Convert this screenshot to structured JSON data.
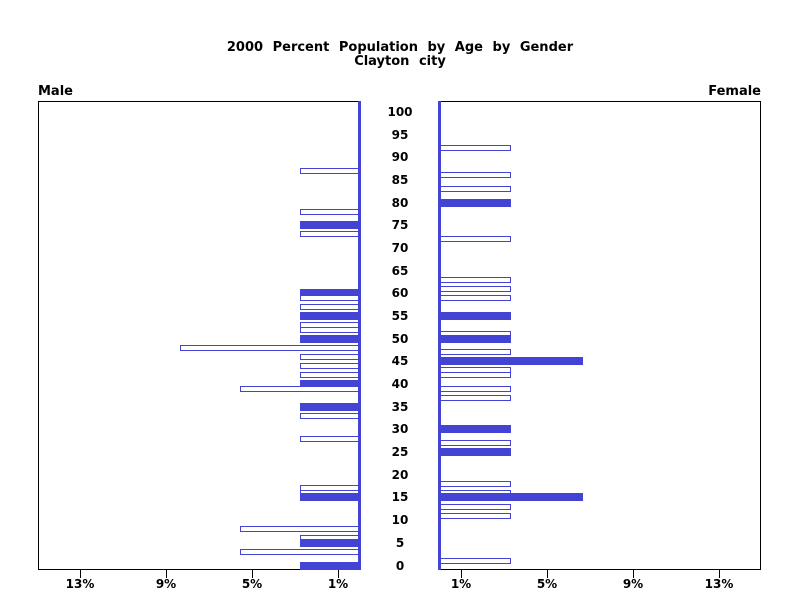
{
  "title": "2000 Percent Population by Age by Gender",
  "subtitle": "Clayton city",
  "colors": {
    "bar_blue": "#4444d4",
    "axis_blue": "#4444d4",
    "frame_black": "#000000",
    "background": "#ffffff"
  },
  "chart_data": {
    "type": "bar",
    "variant": "population-pyramid",
    "title": "2000 Percent Population by Age by Gender",
    "subtitle": "Clayton city",
    "age_axis": {
      "min": 0,
      "max": 100,
      "tick_step": 5,
      "ticks": [
        0,
        5,
        10,
        15,
        20,
        25,
        30,
        35,
        40,
        45,
        50,
        55,
        60,
        65,
        70,
        75,
        80,
        85,
        90,
        95,
        100
      ]
    },
    "pct_axis": {
      "max_pct": 15,
      "ticks": [
        {
          "value": 1,
          "label": "1%"
        },
        {
          "value": 5,
          "label": "5%"
        },
        {
          "value": 9,
          "label": "9%"
        },
        {
          "value": 13,
          "label": "13%"
        }
      ]
    },
    "left": {
      "label": "Male",
      "bars": [
        {
          "age": 87,
          "pct": 2.78,
          "filled": false
        },
        {
          "age": 78,
          "pct": 2.78,
          "filled": false
        },
        {
          "age": 75,
          "pct": 2.78,
          "filled": true
        },
        {
          "age": 73,
          "pct": 2.78,
          "filled": false
        },
        {
          "age": 60,
          "pct": 2.78,
          "filled": true
        },
        {
          "age": 59,
          "pct": 2.78,
          "filled": false
        },
        {
          "age": 57,
          "pct": 2.78,
          "filled": false
        },
        {
          "age": 55,
          "pct": 2.78,
          "filled": true
        },
        {
          "age": 53,
          "pct": 2.78,
          "filled": false
        },
        {
          "age": 52,
          "pct": 2.78,
          "filled": false
        },
        {
          "age": 50,
          "pct": 2.78,
          "filled": true
        },
        {
          "age": 48,
          "pct": 8.33,
          "filled": false
        },
        {
          "age": 46,
          "pct": 2.78,
          "filled": false
        },
        {
          "age": 44,
          "pct": 2.78,
          "filled": false
        },
        {
          "age": 42,
          "pct": 2.78,
          "filled": false
        },
        {
          "age": 40,
          "pct": 2.78,
          "filled": true
        },
        {
          "age": 39,
          "pct": 5.56,
          "filled": false
        },
        {
          "age": 35,
          "pct": 2.78,
          "filled": true
        },
        {
          "age": 33,
          "pct": 2.78,
          "filled": false
        },
        {
          "age": 28,
          "pct": 2.78,
          "filled": false
        },
        {
          "age": 17,
          "pct": 2.78,
          "filled": false
        },
        {
          "age": 16,
          "pct": 2.78,
          "filled": false
        },
        {
          "age": 15,
          "pct": 2.78,
          "filled": true
        },
        {
          "age": 8,
          "pct": 5.56,
          "filled": false
        },
        {
          "age": 6,
          "pct": 2.78,
          "filled": false
        },
        {
          "age": 5,
          "pct": 2.78,
          "filled": true
        },
        {
          "age": 3,
          "pct": 5.56,
          "filled": false
        },
        {
          "age": 0,
          "pct": 2.78,
          "filled": true
        }
      ]
    },
    "right": {
      "label": "Female",
      "bars": [
        {
          "age": 92,
          "pct": 3.33,
          "filled": false
        },
        {
          "age": 86,
          "pct": 3.33,
          "filled": false
        },
        {
          "age": 83,
          "pct": 3.33,
          "filled": false
        },
        {
          "age": 80,
          "pct": 3.33,
          "filled": true
        },
        {
          "age": 72,
          "pct": 3.33,
          "filled": false
        },
        {
          "age": 63,
          "pct": 3.33,
          "filled": false
        },
        {
          "age": 61,
          "pct": 3.33,
          "filled": false
        },
        {
          "age": 59,
          "pct": 3.33,
          "filled": false
        },
        {
          "age": 55,
          "pct": 3.33,
          "filled": true
        },
        {
          "age": 51,
          "pct": 3.33,
          "filled": false
        },
        {
          "age": 50,
          "pct": 3.33,
          "filled": true
        },
        {
          "age": 47,
          "pct": 3.33,
          "filled": false
        },
        {
          "age": 45,
          "pct": 6.67,
          "filled": true
        },
        {
          "age": 43,
          "pct": 3.33,
          "filled": false
        },
        {
          "age": 42,
          "pct": 3.33,
          "filled": false
        },
        {
          "age": 39,
          "pct": 3.33,
          "filled": false
        },
        {
          "age": 37,
          "pct": 3.33,
          "filled": false
        },
        {
          "age": 30,
          "pct": 3.33,
          "filled": true
        },
        {
          "age": 27,
          "pct": 3.33,
          "filled": false
        },
        {
          "age": 25,
          "pct": 3.33,
          "filled": true
        },
        {
          "age": 18,
          "pct": 3.33,
          "filled": false
        },
        {
          "age": 16,
          "pct": 3.33,
          "filled": false
        },
        {
          "age": 15,
          "pct": 6.67,
          "filled": true
        },
        {
          "age": 13,
          "pct": 3.33,
          "filled": false
        },
        {
          "age": 11,
          "pct": 3.33,
          "filled": false
        },
        {
          "age": 1,
          "pct": 3.33,
          "filled": false
        }
      ]
    },
    "legend": "solid bars at ages divisible by 5, hollow bars otherwise",
    "grid": false
  }
}
